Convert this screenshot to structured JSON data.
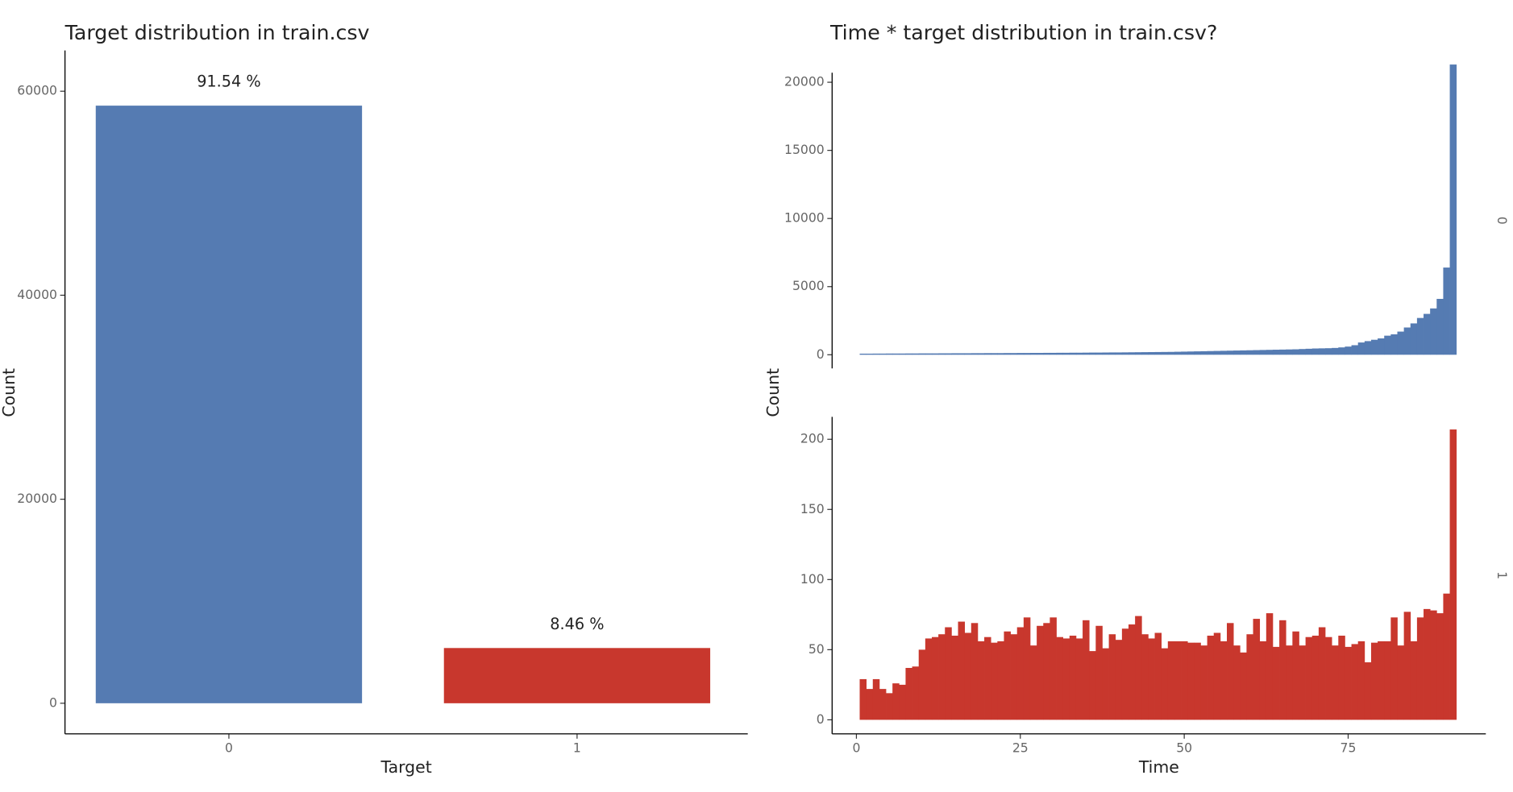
{
  "chart_data": [
    {
      "type": "bar",
      "title": "Target distribution in train.csv",
      "x_label": "Target",
      "y_label": "Count",
      "categories": [
        "0",
        "1"
      ],
      "values": [
        58586,
        5414
      ],
      "value_labels": [
        "91.54 %",
        "8.46 %"
      ],
      "colors": [
        "#557bb2",
        "#c8372d"
      ],
      "ylim": [
        -3000,
        64000
      ],
      "yticks": [
        0,
        20000,
        40000,
        60000
      ],
      "grid": false
    },
    {
      "type": "histogram",
      "title": "Time * target distribution in train.csv?",
      "x_label": "Time",
      "y_label": "Count",
      "xlim": [
        -3.7,
        96
      ],
      "xticks": [
        0,
        25,
        50,
        75
      ],
      "grid": false,
      "bins": [
        0.5,
        1.5,
        2.5,
        3.5,
        4.5,
        5.5,
        6.5,
        7.5,
        8.5,
        9.5,
        10.5,
        11.5,
        12.5,
        13.5,
        14.5,
        15.5,
        16.5,
        17.5,
        18.5,
        19.5,
        20.5,
        21.5,
        22.5,
        23.5,
        24.5,
        25.5,
        26.5,
        27.5,
        28.5,
        29.5,
        30.5,
        31.5,
        32.5,
        33.5,
        34.5,
        35.5,
        36.5,
        37.5,
        38.5,
        39.5,
        40.5,
        41.5,
        42.5,
        43.5,
        44.5,
        45.5,
        46.5,
        47.5,
        48.5,
        49.5,
        50.5,
        51.5,
        52.5,
        53.5,
        54.5,
        55.5,
        56.5,
        57.5,
        58.5,
        59.5,
        60.5,
        61.5,
        62.5,
        63.5,
        64.5,
        65.5,
        66.5,
        67.5,
        68.5,
        69.5,
        70.5,
        71.5,
        72.5,
        73.5,
        74.5,
        75.5,
        76.5,
        77.5,
        78.5,
        79.5,
        80.5,
        81.5,
        82.5,
        83.5,
        84.5,
        85.5,
        86.5,
        87.5,
        88.5,
        89.5,
        90.5,
        91.5
      ],
      "panels": [
        {
          "label": "0",
          "color": "#557bb2",
          "ylim": [
            -1000,
            20700
          ],
          "yticks": [
            0,
            5000,
            10000,
            15000,
            20000
          ],
          "values": [
            80,
            80,
            85,
            85,
            90,
            90,
            90,
            95,
            95,
            100,
            100,
            100,
            105,
            105,
            110,
            110,
            110,
            115,
            115,
            120,
            120,
            120,
            125,
            125,
            130,
            130,
            135,
            135,
            140,
            140,
            145,
            145,
            150,
            150,
            155,
            160,
            160,
            165,
            170,
            170,
            175,
            180,
            185,
            190,
            195,
            200,
            205,
            210,
            220,
            230,
            240,
            250,
            260,
            270,
            280,
            290,
            300,
            310,
            320,
            330,
            340,
            350,
            360,
            370,
            380,
            390,
            400,
            420,
            440,
            460,
            470,
            480,
            500,
            540,
            600,
            700,
            900,
            1000,
            1100,
            1200,
            1400,
            1500,
            1700,
            2000,
            2300,
            2700,
            3000,
            3400,
            4100,
            6400,
            21300
          ]
        },
        {
          "label": "1",
          "color": "#c8372d",
          "ylim": [
            -10,
            216
          ],
          "yticks": [
            0,
            50,
            100,
            150,
            200
          ],
          "values": [
            29,
            22,
            29,
            22,
            19,
            26,
            25,
            37,
            38,
            50,
            58,
            59,
            61,
            66,
            60,
            70,
            62,
            69,
            56,
            59,
            55,
            56,
            63,
            61,
            66,
            73,
            53,
            67,
            69,
            73,
            59,
            58,
            60,
            58,
            71,
            49,
            67,
            51,
            61,
            57,
            65,
            68,
            74,
            61,
            58,
            62,
            51,
            56,
            56,
            56,
            55,
            55,
            53,
            60,
            62,
            56,
            69,
            53,
            48,
            61,
            72,
            56,
            76,
            52,
            71,
            53,
            63,
            53,
            59,
            60,
            66,
            59,
            53,
            60,
            52,
            54,
            56,
            41,
            55,
            56,
            56,
            73,
            53,
            77,
            56,
            73,
            79,
            78,
            76,
            90,
            207
          ]
        }
      ]
    }
  ]
}
